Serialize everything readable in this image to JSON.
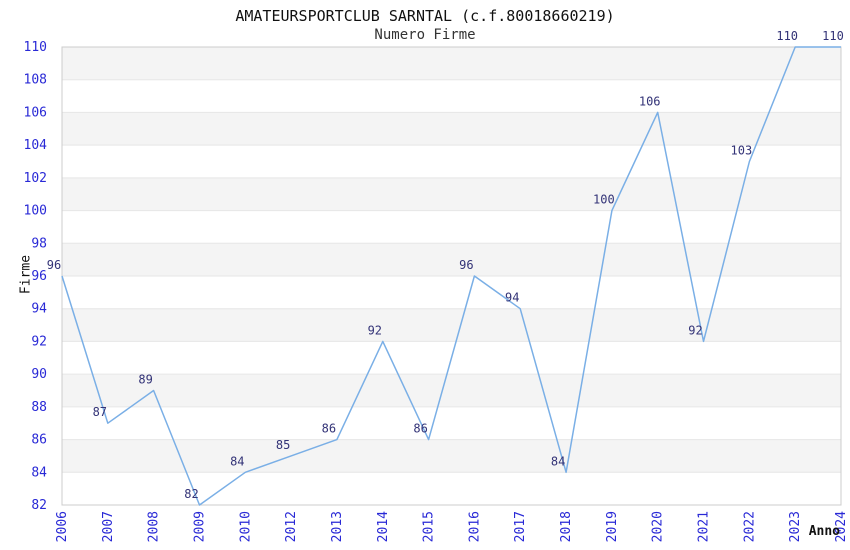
{
  "chart": {
    "title": "AMATEURSPORTCLUB SARNTAL (c.f.80018660219)",
    "subtitle": "Numero Firme"
  },
  "chart_data": {
    "type": "line",
    "title": "AMATEURSPORTCLUB SARNTAL (c.f.80018660219)",
    "subtitle": "Numero Firme",
    "xlabel": "Anno",
    "ylabel": "Firme",
    "categories": [
      "2006",
      "2007",
      "2008",
      "2009",
      "2010",
      "2012",
      "2013",
      "2014",
      "2015",
      "2016",
      "2017",
      "2018",
      "2019",
      "2020",
      "2021",
      "2022",
      "2023",
      "2024"
    ],
    "values": [
      96,
      87,
      89,
      82,
      84,
      85,
      86,
      92,
      86,
      96,
      94,
      84,
      100,
      106,
      92,
      103,
      110,
      110
    ],
    "ylim": [
      82,
      110
    ],
    "yticks": [
      82,
      84,
      86,
      88,
      90,
      92,
      94,
      96,
      98,
      100,
      102,
      104,
      106,
      108,
      110
    ],
    "grid": true,
    "legend_position": "none",
    "data_labels_visible": true,
    "colors": {
      "line": "#7aafe6",
      "tick_label": "#2929d6",
      "data_label": "#333377",
      "band_fill": "#f4f4f4",
      "grid_line": "#e6e6e6",
      "plot_border": "#cccccc",
      "title_text": "#111111",
      "subtitle_text": "#333333"
    }
  }
}
